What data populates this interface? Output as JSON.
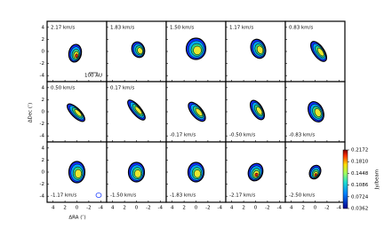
{
  "chart_data": {
    "type": "channel-map",
    "xlabel": "ΔRA (″)",
    "ylabel": "ΔDec (″)",
    "panels": [
      "2.17 km/s",
      "1.83 km/s",
      "1.50 km/s",
      "1.17 km/s",
      "0.83 km/s",
      "0.50 km/s",
      "0.17 km/s",
      "-0.17 km/s",
      "-0.50 km/s",
      "-0.83 km/s",
      "-1.17 km/s",
      "-1.50 km/s",
      "-1.83 km/s",
      "-2.17 km/s",
      "-2.50 km/s"
    ],
    "scale_bar": "100 AU",
    "xlim": [
      5,
      -5
    ],
    "ylim": [
      -5,
      5
    ],
    "xticks": [
      4,
      2,
      0,
      -2,
      -4
    ],
    "yticks": [
      4,
      2,
      0,
      -2,
      -4
    ],
    "colorbar": {
      "label": "Jy/beam",
      "lim": [
        0.0362,
        0.2172
      ],
      "ticks": [
        0.2172,
        {
          "value": 0.181,
          "label": "0.1810"
        },
        0.1448,
        0.1086,
        0.0724,
        0.0362
      ]
    }
  }
}
